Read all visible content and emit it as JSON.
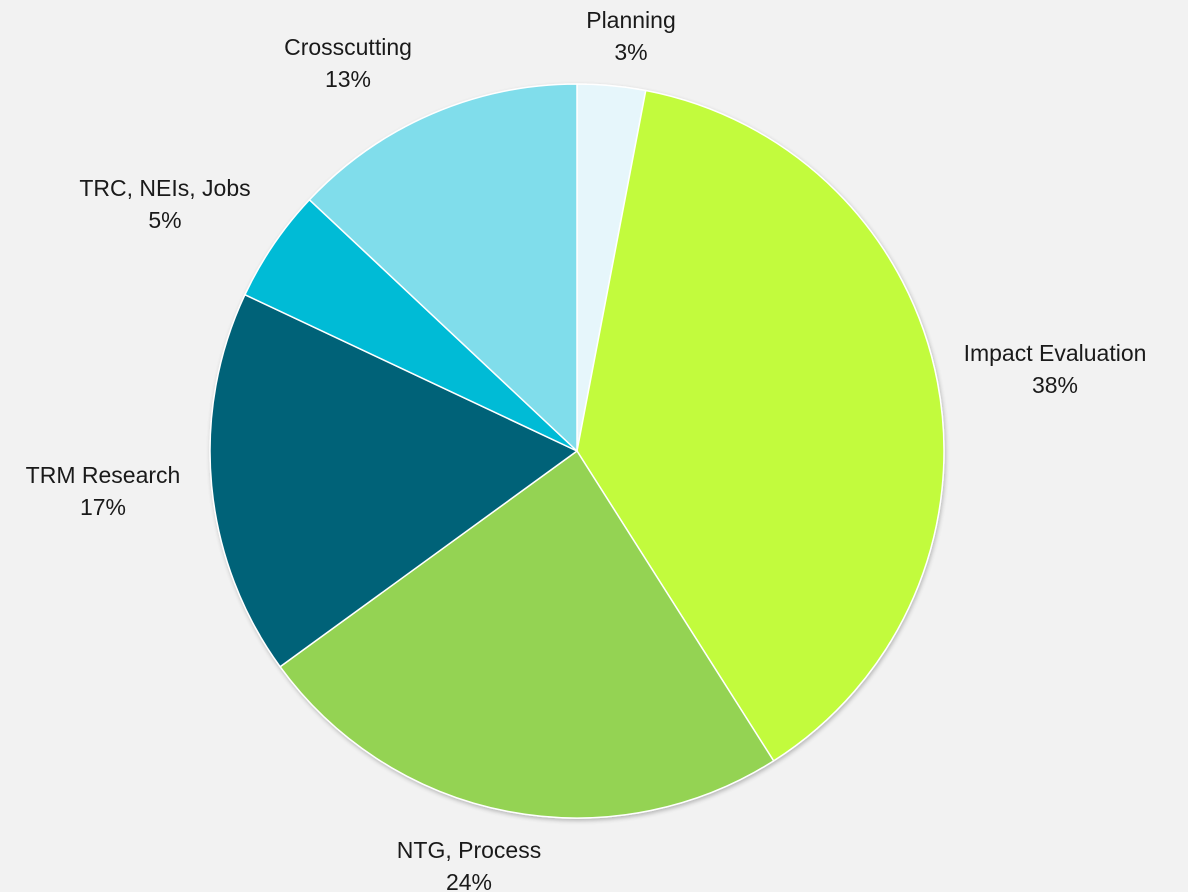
{
  "chart_data": {
    "type": "pie",
    "title": "",
    "slices": [
      {
        "label": "Planning",
        "value": 3,
        "value_label": "3%",
        "color": "#e6f6fb"
      },
      {
        "label": "Impact Evaluation",
        "value": 38,
        "value_label": "38%",
        "color": "#c2fb3c"
      },
      {
        "label": "NTG, Process",
        "value": 24,
        "value_label": "24%",
        "color": "#94d352"
      },
      {
        "label": "TRM Research",
        "value": 17,
        "value_label": "17%",
        "color": "#066278"
      },
      {
        "label": "TRC, NEIs, Jobs",
        "value": 5,
        "value_label": "5%",
        "color": "#03bbd6"
      },
      {
        "label": "Crosscutting",
        "value": 13,
        "value_label": "13%",
        "color": "#80ddeb"
      }
    ],
    "start_angle": "12 o'clock",
    "direction": "clockwise",
    "legend": "none",
    "data_labels": "outside, category name and percentage"
  }
}
